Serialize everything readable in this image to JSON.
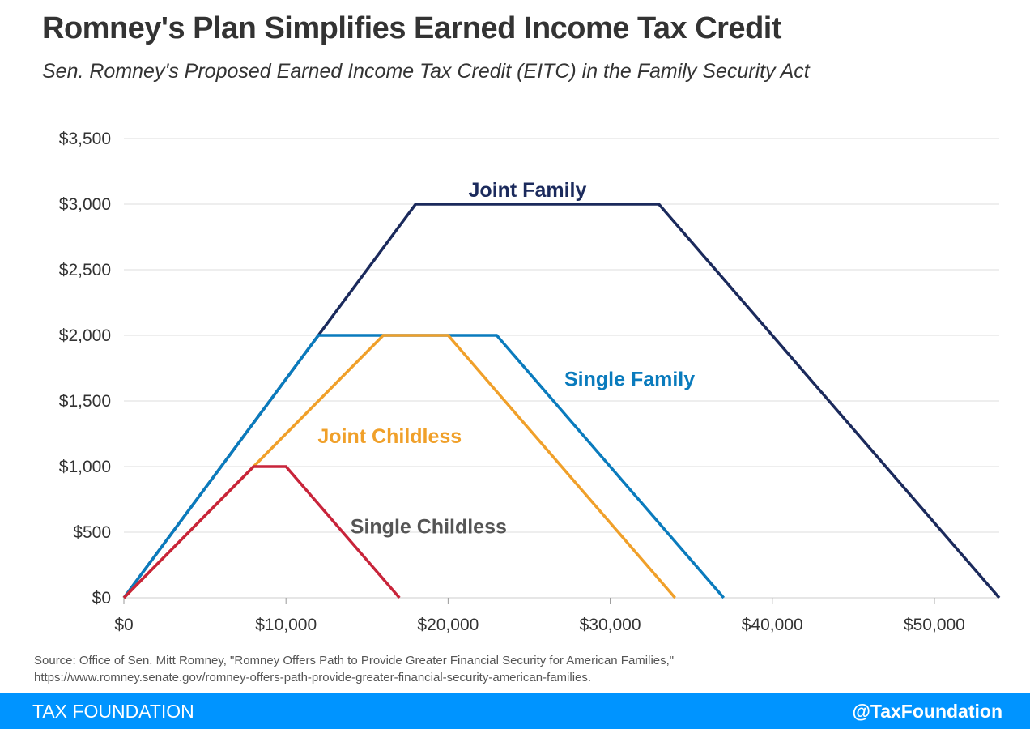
{
  "chart_data": {
    "type": "line",
    "title": "Romney's Plan Simplifies Earned Income Tax Credit",
    "subtitle": "Sen. Romney's Proposed Earned Income Tax Credit (EITC) in the Family Security Act",
    "xlim": [
      0,
      54000
    ],
    "ylim": [
      0,
      3500
    ],
    "x_ticks": [
      0,
      10000,
      20000,
      30000,
      40000,
      50000
    ],
    "x_tick_labels": [
      "$0",
      "$10,000",
      "$20,000",
      "$30,000",
      "$40,000",
      "$50,000"
    ],
    "y_ticks": [
      0,
      500,
      1000,
      1500,
      2000,
      2500,
      3000,
      3500
    ],
    "y_tick_labels": [
      "$0",
      "$500",
      "$1,000",
      "$1,500",
      "$2,000",
      "$2,500",
      "$3,000",
      "$3,500"
    ],
    "grid": "horizontal",
    "series": [
      {
        "name": "Joint Family",
        "color": "#1b2a5c",
        "x": [
          0,
          18000,
          33000,
          54000
        ],
        "y": [
          0,
          3000,
          3000,
          0
        ]
      },
      {
        "name": "Single Family",
        "color": "#0a7bbd",
        "x": [
          0,
          12000,
          23000,
          37000
        ],
        "y": [
          0,
          2000,
          2000,
          0
        ]
      },
      {
        "name": "Joint Childless",
        "color": "#f0a02a",
        "x": [
          0,
          16000,
          20000,
          34000
        ],
        "y": [
          0,
          2000,
          2000,
          0
        ]
      },
      {
        "name": "Single Childless",
        "color": "#c8243a",
        "x": [
          0,
          8000,
          10000,
          17000
        ],
        "y": [
          0,
          1000,
          1000,
          0
        ]
      }
    ],
    "series_label_colors": {
      "Joint Family": "#1b2a5c",
      "Single Family": "#0a7bbd",
      "Joint Childless": "#f0a02a",
      "Single Childless": "#555555"
    }
  },
  "source_line1": "Source: Office of Sen. Mitt Romney, \"Romney Offers Path to Provide Greater Financial Security for American Families,\"",
  "source_line2": "https://www.romney.senate.gov/romney-offers-path-provide-greater-financial-security-american-families.",
  "footer": {
    "left": "TAX FOUNDATION",
    "right": "@TaxFoundation"
  }
}
